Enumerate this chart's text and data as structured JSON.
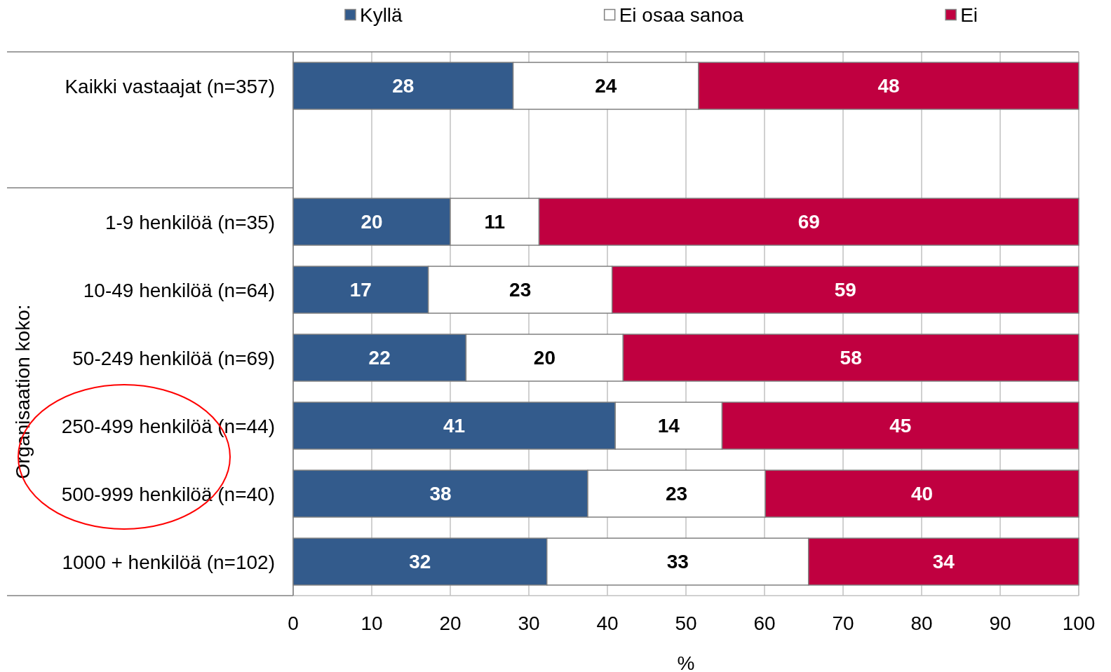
{
  "chart_data": {
    "type": "bar",
    "orientation": "horizontal",
    "stacked": true,
    "categories": [
      "Kaikki vastaajat (n=357)",
      null,
      "1-9 henkilöä (n=35)",
      "10-49 henkilöä (n=64)",
      "50-249 henkilöä (n=69)",
      "250-499 henkilöä (n=44)",
      "500-999 henkilöä (n=40)",
      "1000 + henkilöä (n=102)"
    ],
    "series": [
      {
        "name": "Kyllä",
        "color": "#335b8c",
        "values": [
          28,
          null,
          20,
          17.2,
          22,
          41,
          37.5,
          32.3
        ],
        "value_labels": [
          "28",
          null,
          "20",
          "17",
          "22",
          "41",
          "38",
          "32"
        ]
      },
      {
        "name": "Ei osaa sanoa",
        "color": "#ffffff",
        "values": [
          23.6,
          null,
          11.3,
          23.4,
          20,
          13.6,
          22.6,
          33.3
        ],
        "value_labels": [
          "24",
          null,
          "11",
          "23",
          "20",
          "14",
          "23",
          "33"
        ]
      },
      {
        "name": "Ei",
        "color": "#c00040",
        "values": [
          48.4,
          null,
          68.7,
          59.4,
          58,
          45.4,
          39.9,
          34.4
        ],
        "value_labels": [
          "48",
          null,
          "69",
          "59",
          "58",
          "45",
          "40",
          "34"
        ]
      }
    ],
    "xlabel": "%",
    "ylabel": "Organisaation koko:",
    "xlim": [
      0,
      100
    ],
    "xticks": [
      0,
      10,
      20,
      30,
      40,
      50,
      60,
      70,
      80,
      90,
      100
    ],
    "grid": "x",
    "legend": "top"
  }
}
